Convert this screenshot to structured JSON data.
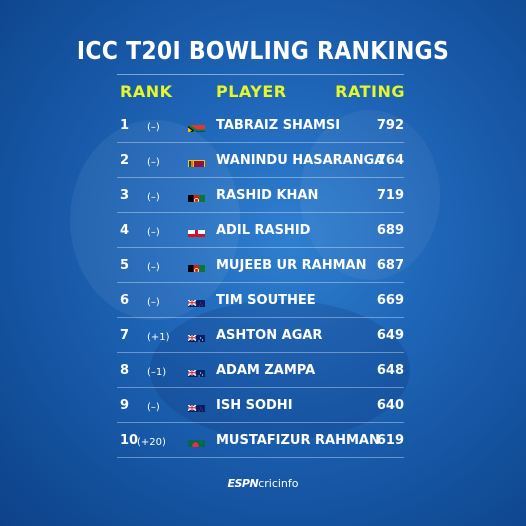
{
  "title": "ICC T20I BOWLING RANKINGS",
  "headers": {
    "rank": "RANK",
    "player": "PLAYER",
    "rating": "RATING"
  },
  "colors": {
    "accent": "#e4f72b",
    "background": "#1f66b8"
  },
  "rows": [
    {
      "rank": "1",
      "change": "(–)",
      "flag": "south-africa-flag",
      "player": "TABRAIZ SHAMSI",
      "rating": "792"
    },
    {
      "rank": "2",
      "change": "(–)",
      "flag": "sri-lanka-flag",
      "player": "WANINDU HASARANGA",
      "rating": "764"
    },
    {
      "rank": "3",
      "change": "(–)",
      "flag": "afghanistan-flag",
      "player": "RASHID KHAN",
      "rating": "719"
    },
    {
      "rank": "4",
      "change": "(–)",
      "flag": "england-flag",
      "player": "ADIL RASHID",
      "rating": "689"
    },
    {
      "rank": "5",
      "change": "(–)",
      "flag": "afghanistan-flag",
      "player": "MUJEEB UR RAHMAN",
      "rating": "687"
    },
    {
      "rank": "6",
      "change": "(–)",
      "flag": "new-zealand-flag",
      "player": "TIM SOUTHEE",
      "rating": "669"
    },
    {
      "rank": "7",
      "change": "(+1)",
      "flag": "australia-flag",
      "player": "ASHTON AGAR",
      "rating": "649"
    },
    {
      "rank": "8",
      "change": "(–1)",
      "flag": "australia-flag",
      "player": "ADAM ZAMPA",
      "rating": "648"
    },
    {
      "rank": "9",
      "change": "(–)",
      "flag": "new-zealand-flag",
      "player": "ISH SODHI",
      "rating": "640"
    },
    {
      "rank": "10",
      "change": "(+20)",
      "flag": "bangladesh-flag",
      "player": "MUSTAFIZUR RAHMAN",
      "rating": "619"
    }
  ],
  "logo": {
    "espn": "ESPN",
    "cricinfo": "cricinfo"
  }
}
